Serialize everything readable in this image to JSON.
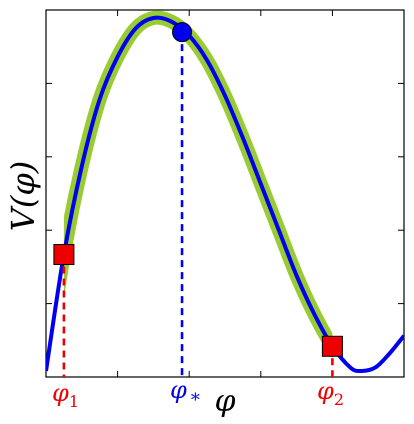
{
  "chart_data": {
    "type": "line",
    "title": "",
    "xlabel": "φ",
    "ylabel": "V(φ)",
    "xlim": [
      0,
      1
    ],
    "ylim": [
      0,
      1
    ],
    "axis_ticks": "unlabeled",
    "curve": {
      "x": [
        0.0,
        0.05,
        0.1,
        0.15,
        0.2,
        0.25,
        0.3,
        0.35,
        0.4,
        0.45,
        0.5,
        0.55,
        0.6,
        0.65,
        0.7,
        0.75,
        0.8,
        0.85,
        0.88,
        0.92,
        0.96,
        1.0
      ],
      "y": [
        0.0,
        0.33,
        0.58,
        0.77,
        0.89,
        0.97,
        1.0,
        0.99,
        0.95,
        0.88,
        0.78,
        0.66,
        0.53,
        0.4,
        0.27,
        0.16,
        0.07,
        0.01,
        0.0,
        0.01,
        0.05,
        0.1
      ],
      "color": "#0000ee"
    },
    "highlight_band": {
      "x_range": [
        0.05,
        0.8
      ],
      "color": "#99cc33"
    },
    "markers": [
      {
        "name": "phi_1",
        "x": 0.05,
        "y": 0.33,
        "shape": "square",
        "color": "#ee0000",
        "label": "φ1"
      },
      {
        "name": "phi_star",
        "x": 0.38,
        "y": 0.96,
        "shape": "circle",
        "color": "#0000ee",
        "label": "φ*"
      },
      {
        "name": "phi_2",
        "x": 0.8,
        "y": 0.07,
        "shape": "square",
        "color": "#ee0000",
        "label": "φ2"
      }
    ],
    "labels": {
      "phi_1": {
        "main": "φ",
        "sub": "1"
      },
      "phi_star": {
        "main": "φ",
        "sub": "*"
      },
      "phi_2": {
        "main": "φ",
        "sub": "2"
      }
    }
  }
}
